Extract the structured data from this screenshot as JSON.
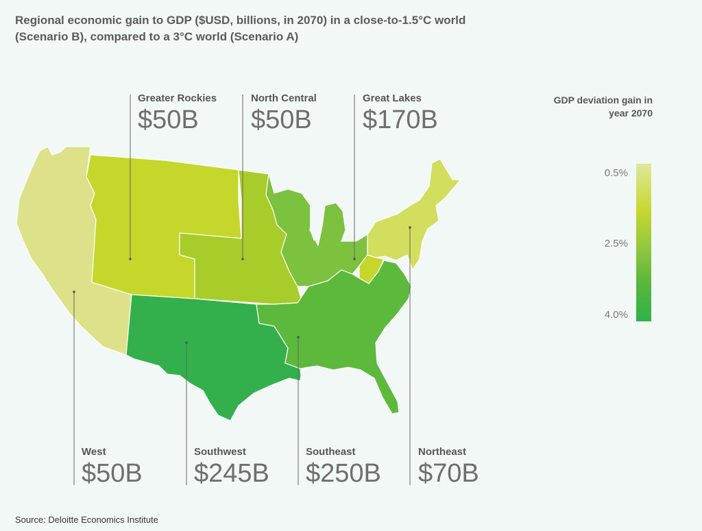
{
  "title": "Regional economic gain to GDP ($USD, billions, in 2070) in a close-to-1.5°C world (Scenario B), compared to a 3°C world (Scenario A)",
  "source": "Source: Deloitte Economics Institute",
  "legend": {
    "title": "GDP deviation gain in year 2070",
    "ticks": [
      "0.5%",
      "2.5%",
      "4.0%"
    ]
  },
  "regions": {
    "greater_rockies": {
      "name": "Greater Rockies",
      "value": "$50B",
      "color": "#c5d72a"
    },
    "north_central": {
      "name": "North Central",
      "value": "$50B",
      "color": "#a8cc2a"
    },
    "great_lakes": {
      "name": "Great Lakes",
      "value": "$170B",
      "color": "#7cc23f"
    },
    "west": {
      "name": "West",
      "value": "$50B",
      "color": "#dde28a"
    },
    "southwest": {
      "name": "Southwest",
      "value": "$245B",
      "color": "#33b04b"
    },
    "southeast": {
      "name": "Southeast",
      "value": "$250B",
      "color": "#5db93c"
    },
    "northeast": {
      "name": "Northeast",
      "value": "$70B",
      "color": "#d2df5e"
    }
  }
}
